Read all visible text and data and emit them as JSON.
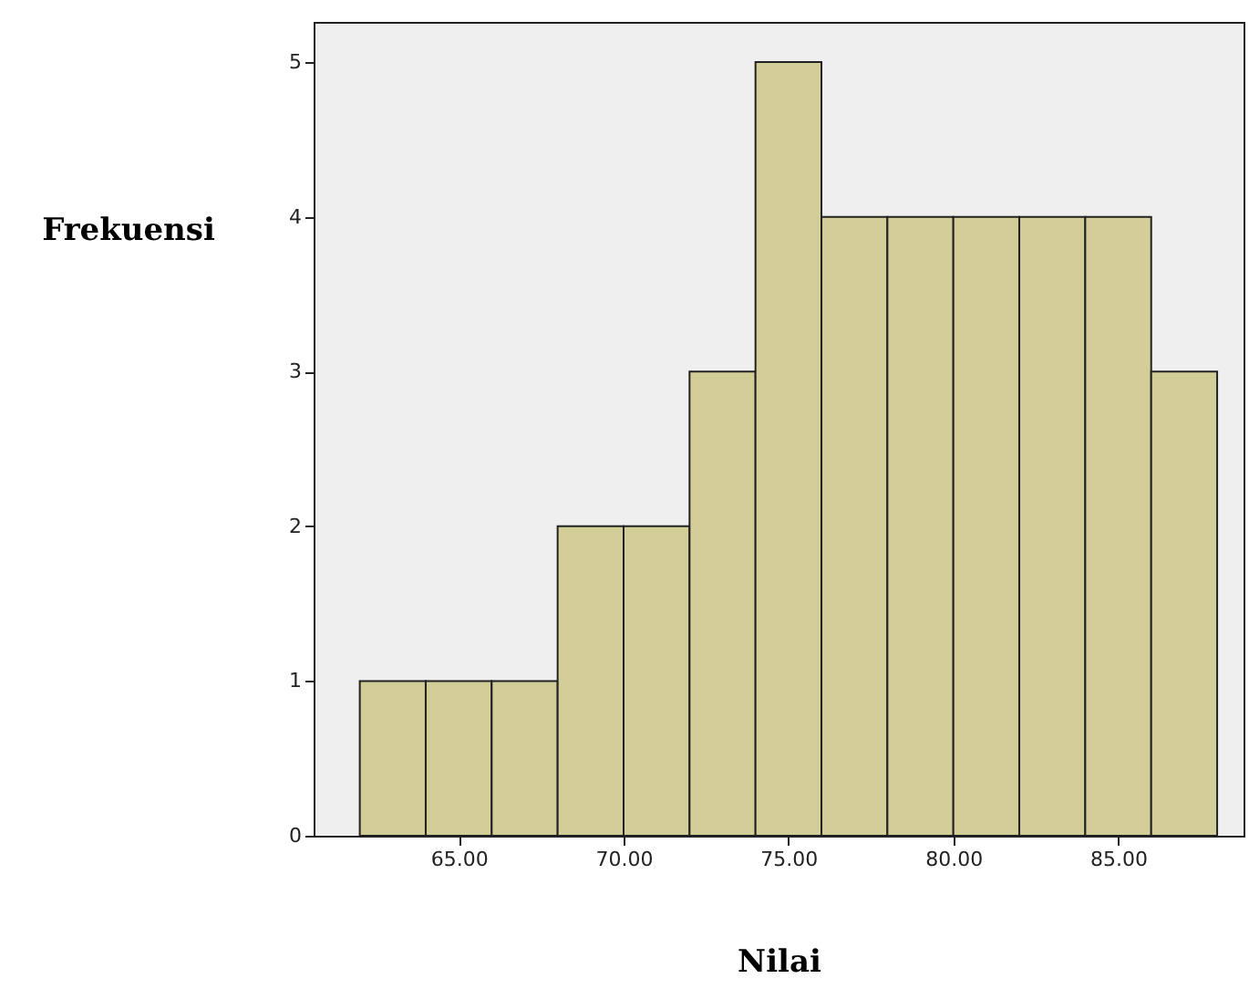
{
  "chart_data": {
    "type": "histogram",
    "xlabel": "Nilai",
    "ylabel": "Frekuensi",
    "bins": [
      62,
      64,
      66,
      68,
      70,
      72,
      74,
      76,
      78,
      80,
      82,
      84,
      86,
      88
    ],
    "values": [
      1,
      1,
      1,
      2,
      2,
      3,
      5,
      4,
      4,
      4,
      4,
      4,
      3
    ],
    "color": "#d3ce98",
    "xlim": [
      60.6,
      88.8
    ],
    "xticks": [
      {
        "value": 65,
        "label": "65.00"
      },
      {
        "value": 70,
        "label": "70.00"
      },
      {
        "value": 75,
        "label": "75.00"
      },
      {
        "value": 80,
        "label": "80.00"
      },
      {
        "value": 85,
        "label": "85.00"
      }
    ],
    "ylim": [
      0,
      5.26
    ],
    "yticks": [
      0,
      1,
      2,
      3,
      4,
      5
    ],
    "grid": false
  }
}
